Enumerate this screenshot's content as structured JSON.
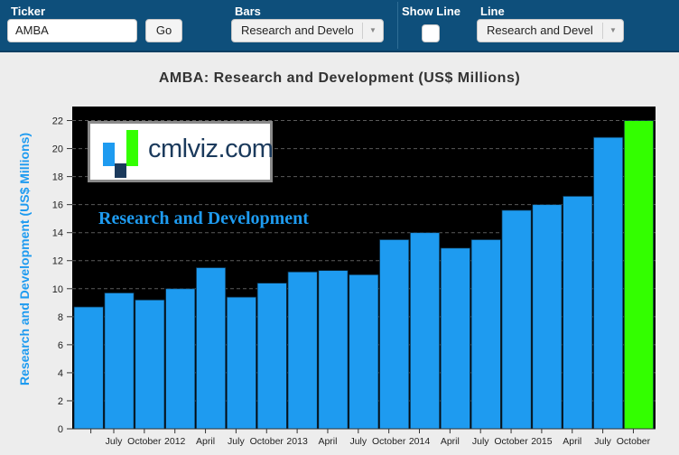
{
  "toolbar": {
    "ticker_label": "Ticker",
    "ticker_value": "AMBA",
    "go_label": "Go",
    "bars_label": "Bars",
    "bars_selected": "Research and Development",
    "show_line_label": "Show Line",
    "line_label": "Line",
    "line_selected": "Research and Development"
  },
  "logo": {
    "text": "cmlviz.com"
  },
  "watermark": "Research and Development",
  "colors": {
    "toolbar_bg": "#0e4f7b",
    "bar": "#1e9bf0",
    "bar_highlight": "#33ff00",
    "plot_bg": "#000000"
  },
  "chart_data": {
    "type": "bar",
    "title": "AMBA: Research and Development (US$ Millions)",
    "ylabel": "Research and Development (US$ Millions)",
    "xlabel": "",
    "ylim": [
      0,
      23
    ],
    "yticks": [
      0,
      2,
      4,
      6,
      8,
      10,
      12,
      14,
      16,
      18,
      20,
      22
    ],
    "grid": true,
    "values": [
      8.7,
      9.7,
      9.2,
      10.0,
      11.5,
      9.4,
      10.4,
      11.2,
      11.3,
      11.0,
      13.5,
      14.0,
      12.9,
      13.5,
      15.6,
      16.0,
      16.6,
      20.8,
      22.0
    ],
    "highlight_index": 18,
    "x_tick_labels": [
      "July",
      "October",
      "2012",
      "April",
      "July",
      "October",
      "2013",
      "April",
      "July",
      "October",
      "2014",
      "April",
      "July",
      "October",
      "2015",
      "April",
      "July",
      "October"
    ]
  }
}
